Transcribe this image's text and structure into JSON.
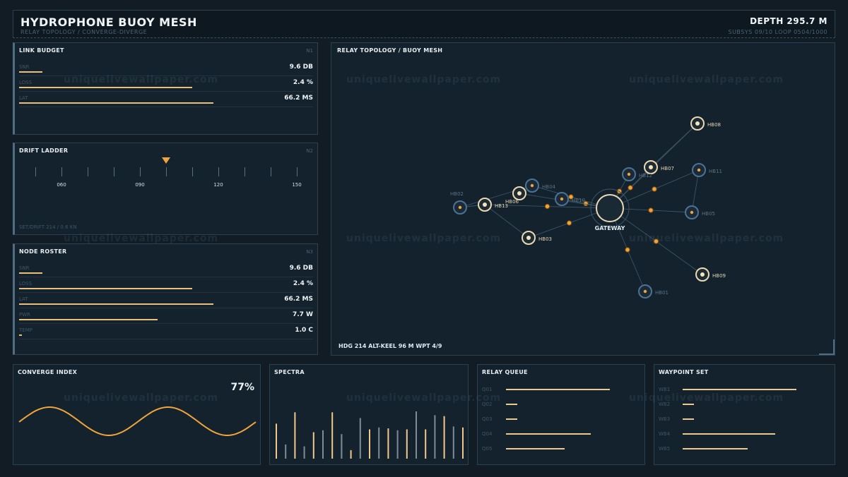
{
  "header": {
    "title": "HYDROPHONE BUOY MESH",
    "subtitle": "RELAY TOPOLOGY / CONVERGE-DIVERGE",
    "depth": "DEPTH  295.7 M",
    "sysinfo": "SUBSYS 09/10  LOOP 0504/1000"
  },
  "link_budget": {
    "title": "LINK BUDGET",
    "tag": "N1",
    "rows": [
      {
        "label": "SNR",
        "value": "9.6 DB",
        "fill": 0.08
      },
      {
        "label": "LOSS",
        "value": "2.4 %",
        "fill": 0.59
      },
      {
        "label": "LAT",
        "value": "66.2 MS",
        "fill": 0.66
      }
    ]
  },
  "drift_ladder": {
    "title": "DRIFT LADDER",
    "tag": "N2",
    "scale_labels": [
      "060",
      "090",
      "120",
      "150"
    ],
    "marker_value": 100,
    "footer": "SET/DRIFT 214 / 0.6 KN"
  },
  "node_roster": {
    "title": "NODE ROSTER",
    "tag": "N3",
    "rows": [
      {
        "label": "SNR",
        "value": "9.6 DB",
        "fill": 0.08
      },
      {
        "label": "LOSS",
        "value": "2.4 %",
        "fill": 0.59
      },
      {
        "label": "LAT",
        "value": "66.2 MS",
        "fill": 0.66
      },
      {
        "label": "PWR",
        "value": "7.7 W",
        "fill": 0.47
      },
      {
        "label": "TEMP",
        "value": "1.0 C",
        "fill": 0.01
      }
    ]
  },
  "topology": {
    "title": "RELAY TOPOLOGY / BUOY MESH",
    "footer": "HDG 214  ALT-KEEL 96 M  WPT 4/9",
    "gateway_label": "GATEWAY",
    "nodes": [
      {
        "id": "HB08",
        "style": "bright"
      },
      {
        "id": "HB07",
        "style": "bright"
      },
      {
        "id": "HB11",
        "style": "dim"
      },
      {
        "id": "HB12",
        "style": "dim"
      },
      {
        "id": "HB04",
        "style": "dim"
      },
      {
        "id": "HB06",
        "style": "bright"
      },
      {
        "id": "HB10",
        "style": "dim"
      },
      {
        "id": "HB02",
        "style": "dim"
      },
      {
        "id": "HB13",
        "style": "bright"
      },
      {
        "id": "HB05",
        "style": "dim"
      },
      {
        "id": "HB03",
        "style": "bright"
      },
      {
        "id": "HB09",
        "style": "bright"
      },
      {
        "id": "HB01",
        "style": "dim"
      }
    ]
  },
  "converge": {
    "title": "CONVERGE INDEX",
    "percent": "77%"
  },
  "spectra": {
    "title": "SPECTRA",
    "levels": [
      0.74,
      0.3,
      0.98,
      0.26,
      0.56,
      0.6,
      0.98,
      0.52,
      0.18,
      0.86,
      0.62,
      0.66,
      0.64,
      0.6,
      0.62,
      1.0,
      0.62,
      0.92,
      0.9,
      0.68,
      0.66
    ],
    "colors": {
      "bright": "#f1c98a",
      "dim": "#7d8c95"
    }
  },
  "relay_queue": {
    "title": "RELAY QUEUE",
    "rows": [
      {
        "label": "Q01",
        "fill": 0.64
      },
      {
        "label": "Q02",
        "fill": 0.07
      },
      {
        "label": "Q03",
        "fill": 0.07
      },
      {
        "label": "Q04",
        "fill": 0.52
      },
      {
        "label": "Q05",
        "fill": 0.36
      }
    ]
  },
  "waypoint_set": {
    "title": "WAYPOINT SET",
    "rows": [
      {
        "label": "WB1",
        "fill": 0.7
      },
      {
        "label": "WB2",
        "fill": 0.07
      },
      {
        "label": "WB3",
        "fill": 0.07
      },
      {
        "label": "WB4",
        "fill": 0.57
      },
      {
        "label": "WB5",
        "fill": 0.4
      }
    ]
  },
  "watermark": "uniquelivewallpaper.com",
  "colors": {
    "accent": "#f0a53b",
    "bar": "#e9c07a",
    "panel_bg": "#14222d",
    "border": "#2c4050"
  }
}
